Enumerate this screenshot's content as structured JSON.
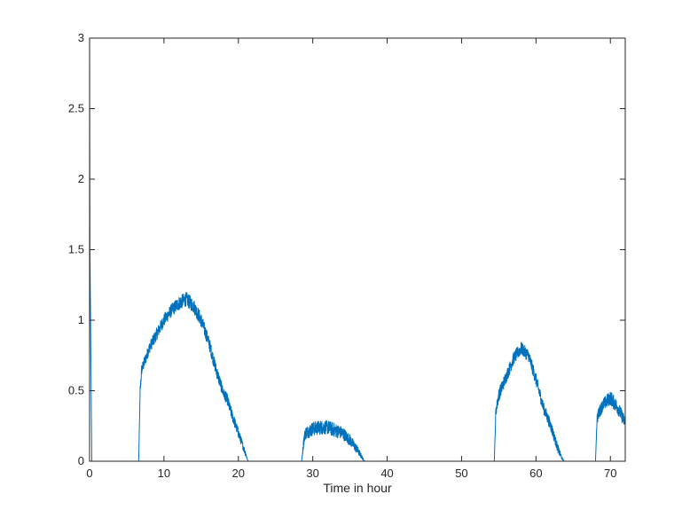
{
  "chart_data": {
    "type": "line",
    "title": "",
    "xlabel": "Time in hour",
    "ylabel": "",
    "xlim": [
      0,
      72
    ],
    "ylim": [
      0,
      3
    ],
    "xticks": [
      "0",
      "10",
      "20",
      "30",
      "40",
      "50",
      "60",
      "70"
    ],
    "yticks": [
      "0",
      "0.5",
      "1",
      "1.5",
      "2",
      "2.5",
      "3"
    ],
    "grid": false,
    "legend": "none",
    "color": "#0072BD",
    "series": [
      {
        "x": [
          0,
          0.05,
          0.3,
          6.6,
          6.8,
          7.0,
          7.5,
          8,
          9,
          10,
          11,
          12,
          13,
          14,
          15,
          16,
          17,
          18,
          18.5,
          19,
          20,
          21,
          21.3,
          28.5,
          28.8,
          29,
          30,
          31,
          32,
          33,
          34,
          35,
          36,
          36.7,
          37,
          54.4,
          54.6,
          55,
          56,
          57,
          58,
          59,
          60,
          61,
          62,
          63,
          63.5,
          63.8,
          68,
          68.2,
          68.5,
          69,
          70,
          71,
          72
        ],
        "y": [
          3.0,
          1.5,
          0,
          0,
          0.5,
          0.65,
          0.72,
          0.8,
          0.9,
          1.0,
          1.07,
          1.12,
          1.15,
          1.1,
          1.0,
          0.85,
          0.65,
          0.48,
          0.44,
          0.35,
          0.2,
          0.05,
          0,
          0,
          0.15,
          0.2,
          0.23,
          0.24,
          0.24,
          0.22,
          0.2,
          0.15,
          0.08,
          0.02,
          0,
          0,
          0.35,
          0.47,
          0.6,
          0.73,
          0.8,
          0.75,
          0.58,
          0.38,
          0.25,
          0.08,
          0.02,
          0,
          0,
          0.3,
          0.35,
          0.4,
          0.45,
          0.38,
          0.27
        ],
        "noise": [
          0,
          0,
          0,
          0,
          0.04,
          0.04,
          0.04,
          0.04,
          0.045,
          0.045,
          0.045,
          0.05,
          0.05,
          0.05,
          0.05,
          0.045,
          0.045,
          0.04,
          0.04,
          0.04,
          0.035,
          0.02,
          0,
          0,
          0.04,
          0.045,
          0.05,
          0.05,
          0.05,
          0.05,
          0.045,
          0.04,
          0.03,
          0.01,
          0,
          0,
          0.04,
          0.045,
          0.045,
          0.045,
          0.045,
          0.045,
          0.045,
          0.04,
          0.04,
          0.03,
          0.01,
          0,
          0,
          0.04,
          0.045,
          0.045,
          0.05,
          0.05,
          0.045
        ]
      }
    ]
  }
}
